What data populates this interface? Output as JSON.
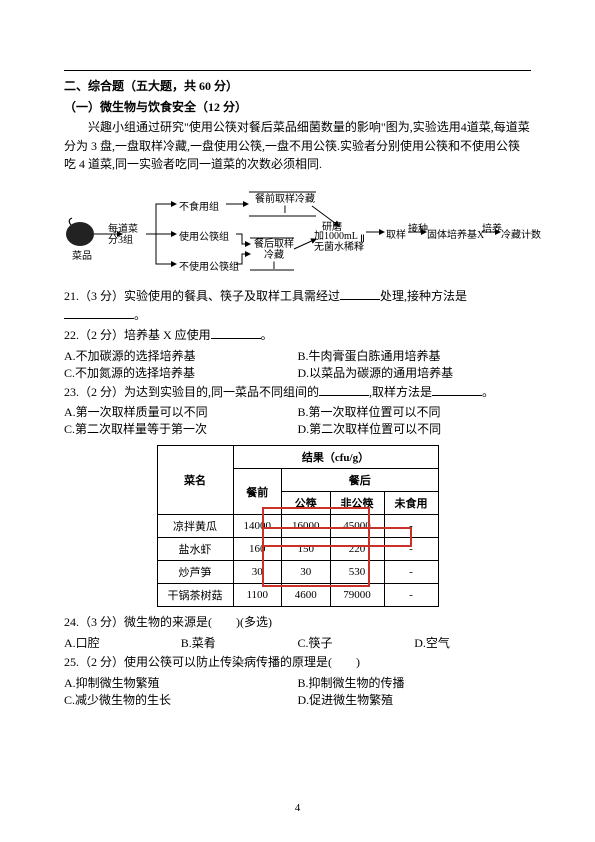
{
  "header": {
    "section": "二、综合题（五大题，共 60 分）",
    "subsection": "（一）微生物与饮食安全（12 分）",
    "intro": "兴趣小组通过研究\"使用公筷对餐后菜品细菌数量的影响\"图为,实验选用4道菜,每道菜分为 3 盘,一盘取样冷藏,一盘使用公筷,一盘不用公筷.实验者分别使用公筷和不使用公筷吃 4 道菜,同一实验者吃同一道菜的次数必须相同."
  },
  "flow": {
    "caipin": "菜品",
    "fen3": "每道菜\n分3组",
    "bushiyong": "不食用组",
    "gongkuai": "使用公筷组",
    "bugongkuai": "不使用公筷组",
    "canqian": "餐前取样冷藏\nⅠ",
    "canhou": "餐后取样\n冷藏\nⅠ",
    "yanmo": "研磨",
    "jia": "加1000mL\n无菌水稀释",
    "quyang": "取样",
    "two": "Ⅱ",
    "jiezhong": "接种",
    "guti": "固体培养基X",
    "peiyang": "培养",
    "lengcang": "冷藏计数"
  },
  "q21": {
    "text_a": "21.（3 分）实验使用的餐具、筷子及取样工具需经过",
    "text_b": "处理,接种方法是",
    "text_c": "。"
  },
  "q22": {
    "text": "22.（2 分）培养基 X 应使用",
    "end": "。",
    "A": "A.不加碳源的选择培养基",
    "B": "B.牛肉膏蛋白胨通用培养基",
    "C": "C.不加氮源的选择培养基",
    "D": "D.以菜品为碳源的通用培养基"
  },
  "q23": {
    "text_a": "23.（2 分）为达到实验目的,同一菜品不同组间的",
    "text_b": ",取样方法是",
    "text_c": "。",
    "A": "A.第一次取样质量可以不同",
    "B": "B.第一次取样位置可以不同",
    "C": "C.第二次取样量等于第一次",
    "D": "D.第二次取样位置可以不同"
  },
  "table": {
    "caption_unit": "结果（cfu/g）",
    "col_name": "菜名",
    "col_before": "餐前",
    "col_after": "餐后",
    "sub_gk": "公筷",
    "sub_fgk": "非公筷",
    "sub_wsy": "未食用",
    "rows": [
      {
        "name": "凉拌黄瓜",
        "before": "14000",
        "gk": "16000",
        "fgk": "45000",
        "wsy": "-"
      },
      {
        "name": "盐水虾",
        "before": "160",
        "gk": "150",
        "fgk": "220",
        "wsy": "-"
      },
      {
        "name": "炒芦笋",
        "before": "30",
        "gk": "30",
        "fgk": "530",
        "wsy": "-"
      },
      {
        "name": "干锅茶树菇",
        "before": "1100",
        "gk": "4600",
        "fgk": "79000",
        "wsy": "-"
      }
    ]
  },
  "q24": {
    "text": "24.（3 分）微生物的来源是(　　)(多选)",
    "A": "A.口腔",
    "B": "B.菜肴",
    "C": "C.筷子",
    "D": "D.空气"
  },
  "q25": {
    "text": "25.（2 分）使用公筷可以防止传染病传播的原理是(　　)",
    "A": "A.抑制微生物繁殖",
    "B": "B.抑制微生物的传播",
    "C": "C.减少微生物的生长",
    "D": "D.促进微生物繁殖"
  },
  "page_number": "4"
}
